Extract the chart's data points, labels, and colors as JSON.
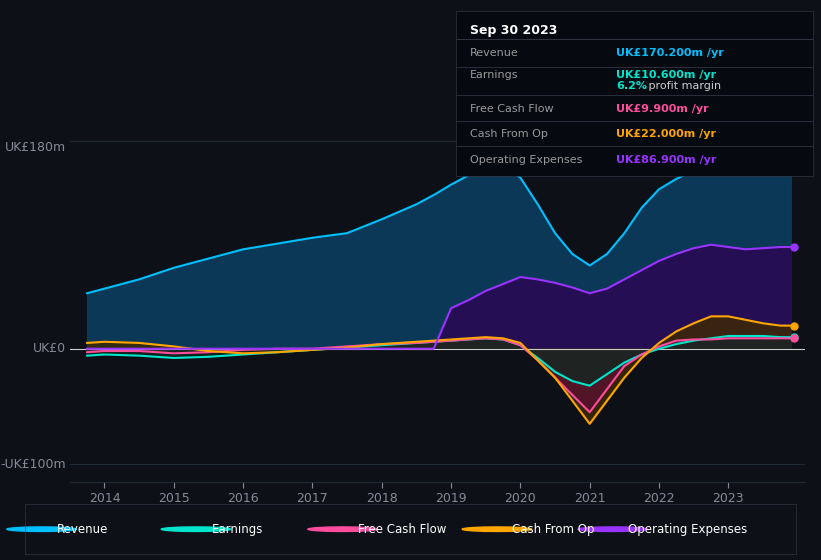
{
  "bg_color": "#0d1117",
  "ylim": [
    -115,
    200
  ],
  "years": [
    2013.75,
    2014.0,
    2014.5,
    2015.0,
    2015.5,
    2016.0,
    2016.5,
    2017.0,
    2017.5,
    2018.0,
    2018.5,
    2018.75,
    2019.0,
    2019.25,
    2019.5,
    2019.75,
    2020.0,
    2020.25,
    2020.5,
    2020.75,
    2021.0,
    2021.25,
    2021.5,
    2021.75,
    2022.0,
    2022.25,
    2022.5,
    2022.75,
    2023.0,
    2023.25,
    2023.5,
    2023.75,
    2023.9
  ],
  "revenue": [
    48,
    52,
    60,
    70,
    78,
    86,
    91,
    96,
    100,
    112,
    125,
    133,
    142,
    150,
    155,
    158,
    148,
    125,
    100,
    82,
    72,
    82,
    100,
    122,
    138,
    147,
    154,
    160,
    163,
    167,
    170,
    173,
    175
  ],
  "earnings": [
    -6,
    -5,
    -6,
    -8,
    -7,
    -5,
    -3,
    -1,
    1,
    3,
    5,
    6,
    7,
    8,
    9,
    8,
    3,
    -8,
    -20,
    -28,
    -32,
    -22,
    -12,
    -5,
    0,
    4,
    7,
    9,
    11,
    11,
    11,
    10,
    10
  ],
  "fcf": [
    -3,
    -2,
    -2,
    -4,
    -3,
    -1,
    0,
    0,
    2,
    4,
    5,
    6,
    7,
    8,
    9,
    8,
    3,
    -10,
    -25,
    -40,
    -55,
    -35,
    -15,
    -5,
    2,
    7,
    8,
    8,
    9,
    9,
    9,
    9,
    9
  ],
  "cashop": [
    5,
    6,
    5,
    2,
    -2,
    -4,
    -3,
    -1,
    1,
    4,
    6,
    7,
    8,
    9,
    10,
    9,
    5,
    -10,
    -25,
    -45,
    -65,
    -45,
    -25,
    -8,
    5,
    15,
    22,
    28,
    28,
    25,
    22,
    20,
    20
  ],
  "opex": [
    0,
    0,
    0,
    0,
    0,
    0,
    0,
    0,
    0,
    0,
    0,
    0,
    35,
    42,
    50,
    56,
    62,
    60,
    57,
    53,
    48,
    52,
    60,
    68,
    76,
    82,
    87,
    90,
    88,
    86,
    87,
    88,
    88
  ],
  "revenue_line_color": "#00bfff",
  "earnings_line_color": "#00e5cc",
  "fcf_line_color": "#ff4d9e",
  "cashop_line_color": "#ffa500",
  "opex_line_color": "#9933ff",
  "revenue_fill_color": "#0a3d5e",
  "opex_fill_color": "#2a0a55",
  "cashop_fill_color": "#3d2a00",
  "fcf_fill_color": "#5a1030",
  "earnings_fill_color": "#0a2a20",
  "grid_color": "#1e2a35",
  "zero_line_color": "#cccccc",
  "text_color": "#888899",
  "info_bg": "#050a10",
  "info_date": "Sep 30 2023",
  "info_revenue_label": "Revenue",
  "info_revenue_value": "UK£170.200m /yr",
  "info_revenue_color": "#00bfff",
  "info_earnings_label": "Earnings",
  "info_earnings_value": "UK£10.600m /yr",
  "info_earnings_color": "#00e5cc",
  "info_margin_text": "6.2% profit margin",
  "info_fcf_label": "Free Cash Flow",
  "info_fcf_value": "UK£9.900m /yr",
  "info_fcf_color": "#ff4d9e",
  "info_cashop_label": "Cash From Op",
  "info_cashop_value": "UK£22.000m /yr",
  "info_cashop_color": "#ffa500",
  "info_opex_label": "Operating Expenses",
  "info_opex_value": "UK£86.900m /yr",
  "info_opex_color": "#9933ff",
  "legend_labels": [
    "Revenue",
    "Earnings",
    "Free Cash Flow",
    "Cash From Op",
    "Operating Expenses"
  ],
  "legend_colors": [
    "#00bfff",
    "#00e5cc",
    "#ff4d9e",
    "#ffa500",
    "#9933ff"
  ],
  "ytick_labels": [
    "UK£180m",
    "UK£0",
    "-UK£100m"
  ],
  "ytick_vals": [
    180,
    0,
    -100
  ],
  "xtick_years": [
    2014,
    2015,
    2016,
    2017,
    2018,
    2019,
    2020,
    2021,
    2022,
    2023
  ]
}
